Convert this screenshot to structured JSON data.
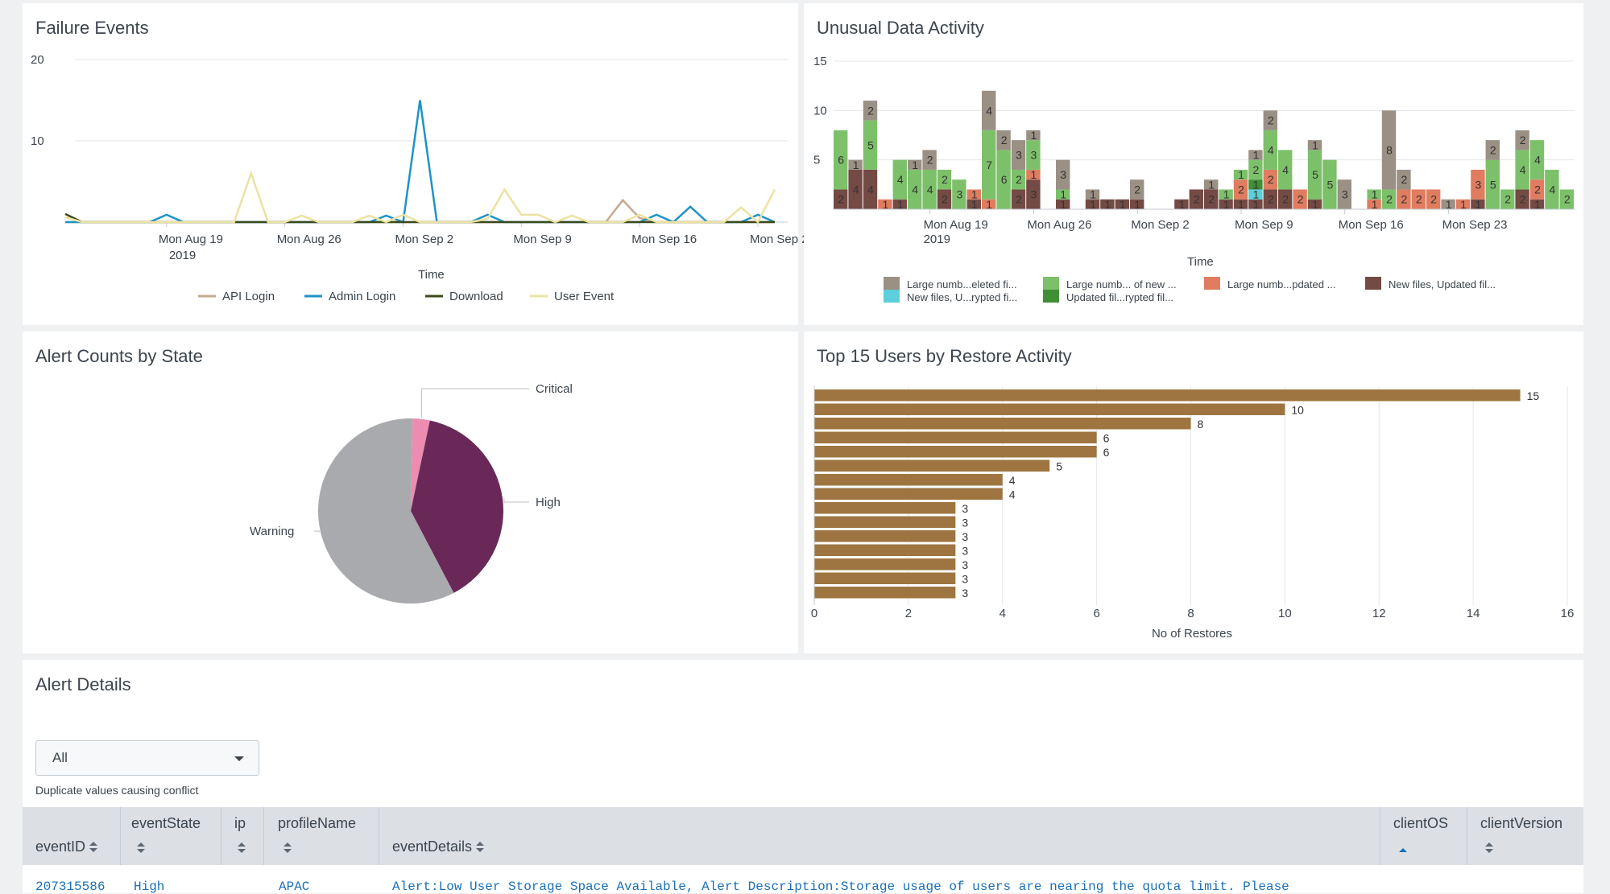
{
  "panels": {
    "failure_events": {
      "title": "Failure Events"
    },
    "unusual_data": {
      "title": "Unusual Data Activity"
    },
    "alert_counts": {
      "title": "Alert Counts by State"
    },
    "top_users": {
      "title": "Top 15 Users by Restore Activity"
    },
    "alert_details": {
      "title": "Alert Details"
    }
  },
  "chart_data": [
    {
      "id": "failure_events",
      "type": "line",
      "title": "Failure Events",
      "xlabel": "Time",
      "ylabel": "",
      "ylim": [
        0,
        20
      ],
      "yticks": [
        10,
        20
      ],
      "xtick_labels": [
        "Mon Aug 19",
        "Mon Aug 26",
        "Mon Sep 2",
        "Mon Sep 9",
        "Mon Sep 16",
        "Mon Sep 23"
      ],
      "xtick_sublabel": "2019",
      "xtick_index": [
        6,
        13,
        20,
        27,
        34,
        41
      ],
      "point_count": 43,
      "series": [
        {
          "name": "API Login",
          "color": "#c4ab8f",
          "values": [
            0,
            0,
            0,
            0,
            0,
            0,
            0,
            0,
            0,
            0,
            0,
            0,
            0,
            0,
            0,
            0,
            0,
            0,
            0,
            0,
            0,
            0,
            0,
            0,
            0,
            0,
            0,
            0,
            0,
            0,
            0,
            0,
            0,
            2.7,
            0.5,
            0,
            0,
            0,
            0,
            0,
            0,
            0,
            0
          ]
        },
        {
          "name": "Admin Login",
          "color": "#1e93c6",
          "values": [
            0,
            0,
            0,
            0,
            0,
            0,
            0.9,
            0,
            0,
            0,
            0,
            0,
            0,
            0,
            0,
            0,
            0,
            0,
            0,
            0.8,
            0,
            15,
            0,
            0,
            0,
            0.9,
            0,
            0,
            0,
            0,
            0,
            0,
            0,
            0,
            0,
            0.9,
            0,
            1.9,
            0,
            0,
            0,
            0.9,
            0
          ]
        },
        {
          "name": "Download",
          "color": "#3a4a1a",
          "values": [
            1,
            0,
            0,
            0,
            0,
            0,
            0,
            0,
            0,
            0,
            0,
            0,
            0,
            0,
            0,
            0,
            0,
            0,
            0,
            0,
            0,
            0,
            0,
            0,
            0,
            0,
            0,
            0,
            0,
            0,
            0,
            0,
            0,
            0,
            0,
            0,
            0,
            0,
            0,
            0,
            0,
            0,
            0
          ]
        },
        {
          "name": "User Event",
          "color": "#ece2a2",
          "values": [
            0.6,
            0,
            0,
            0,
            0,
            0,
            0,
            0,
            0,
            0,
            0,
            6,
            0,
            0,
            0.8,
            0,
            0,
            0,
            0.8,
            0,
            0.9,
            0,
            0,
            0,
            0,
            0.4,
            4,
            0.9,
            0.9,
            0,
            0.8,
            0,
            0,
            0,
            0.9,
            0,
            0,
            0,
            0,
            0,
            1.8,
            0,
            4
          ]
        }
      ]
    },
    {
      "id": "unusual_data",
      "type": "bar",
      "stacked": true,
      "title": "Unusual Data Activity",
      "xlabel": "Time",
      "ylim": [
        0,
        15
      ],
      "yticks": [
        5,
        10,
        15
      ],
      "xtick_labels": [
        "Mon Aug 19",
        "Mon Aug 26",
        "Mon Sep 2",
        "Mon Sep 9",
        "Mon Sep 16",
        "Mon Sep 23"
      ],
      "xtick_sublabel": "2019",
      "xtick_index": [
        6,
        13,
        20,
        27,
        34,
        41
      ],
      "series": [
        {
          "name": "Large numb...eleted fi...",
          "color": "#9a9084",
          "values": [
            0,
            1,
            2,
            0,
            0,
            1,
            2,
            0,
            0,
            0,
            4,
            2,
            3,
            1,
            0,
            3,
            0,
            1,
            0,
            0,
            2,
            0,
            0,
            0,
            0,
            1,
            0,
            0,
            1,
            2,
            0,
            0,
            1,
            0,
            3,
            0,
            0,
            8,
            2,
            0,
            0,
            1,
            0,
            0,
            2,
            0,
            2,
            0,
            0,
            0
          ]
        },
        {
          "name": "Large numb... of new ...",
          "color": "#7dc06a",
          "values": [
            6,
            0,
            5,
            0,
            4,
            4,
            4,
            2,
            3,
            0,
            7,
            6,
            2,
            3,
            0,
            1,
            0,
            0,
            0,
            0,
            0,
            0,
            0,
            0,
            0,
            0,
            1,
            1,
            2,
            4,
            4,
            0,
            5,
            5,
            0,
            0,
            1,
            2,
            0,
            0,
            0,
            0,
            0,
            0,
            5,
            2,
            4,
            4,
            4,
            2
          ]
        },
        {
          "name": "Large numb...pdated ...",
          "color": "#e07c5f",
          "values": [
            0,
            0,
            0,
            1,
            0,
            0,
            0,
            0,
            0,
            1,
            1,
            0,
            0,
            1,
            0,
            0,
            0,
            0,
            0,
            0,
            0,
            0,
            0,
            0,
            0,
            0,
            0,
            2,
            0,
            2,
            0,
            2,
            0,
            0,
            0,
            0,
            1,
            0,
            2,
            2,
            2,
            0,
            1,
            3,
            0,
            0,
            0,
            2,
            0,
            0
          ]
        },
        {
          "name": "New files, Updated fil...",
          "color": "#744a44",
          "values": [
            2,
            4,
            4,
            0,
            1,
            0,
            0,
            2,
            0,
            1,
            0,
            0,
            2,
            3,
            0,
            1,
            0,
            1,
            1,
            1,
            1,
            0,
            0,
            1,
            2,
            2,
            1,
            1,
            1,
            2,
            2,
            0,
            1,
            0,
            0,
            0,
            0,
            0,
            0,
            0,
            0,
            0,
            0,
            1,
            0,
            0,
            2,
            1,
            0,
            0
          ]
        },
        {
          "name": "New files, U...rypted fi...",
          "color": "#5bd0db",
          "values": [
            0,
            0,
            0,
            0,
            0,
            0,
            0,
            0,
            0,
            0,
            0,
            0,
            0,
            0,
            0,
            0,
            0,
            0,
            0,
            0,
            0,
            0,
            0,
            0,
            0,
            0,
            0,
            0,
            1,
            0,
            0,
            0,
            0,
            0,
            0,
            0,
            0,
            0,
            0,
            0,
            0,
            0,
            0,
            0,
            0,
            0,
            0,
            0,
            0,
            0
          ]
        },
        {
          "name": "Updated fil...rypted fil...",
          "color": "#3f8f34",
          "values": [
            0,
            0,
            0,
            0,
            0,
            0,
            0,
            0,
            0,
            0,
            0,
            0,
            0,
            0,
            0,
            0,
            0,
            0,
            0,
            0,
            0,
            0,
            0,
            0,
            0,
            0,
            0,
            0,
            1,
            0,
            0,
            0,
            0,
            0,
            0,
            0,
            0,
            0,
            0,
            0,
            0,
            0,
            0,
            0,
            0,
            0,
            0,
            0,
            0,
            0
          ]
        }
      ]
    },
    {
      "id": "alert_counts",
      "type": "pie",
      "title": "Alert Counts by State",
      "slices": [
        {
          "label": "Critical",
          "value": 3,
          "color": "#ec8cb0"
        },
        {
          "label": "High",
          "value": 39,
          "color": "#6a2858"
        },
        {
          "label": "Warning",
          "value": 58,
          "color": "#a9aaad"
        }
      ]
    },
    {
      "id": "top_users",
      "type": "bar",
      "orientation": "horizontal",
      "title": "Top 15 Users by Restore Activity",
      "xlabel": "No of Restores",
      "xlim": [
        0,
        16
      ],
      "xticks": [
        0,
        2,
        4,
        6,
        8,
        10,
        12,
        14,
        16
      ],
      "color": "#9e7540",
      "values": [
        15,
        10,
        8,
        6,
        6,
        5,
        4,
        4,
        3,
        3,
        3,
        3,
        3,
        3,
        3
      ]
    }
  ],
  "alert_details": {
    "dropdown_value": "All",
    "dropdown_help": "Duplicate values causing conflict",
    "columns": {
      "eventID": "eventID",
      "eventState": "eventState",
      "ip": "ip",
      "profileName": "profileName",
      "eventDetails": "eventDetails",
      "clientOS": "clientOS",
      "clientVersion": "clientVersion"
    },
    "rows": [
      {
        "eventID": "207315586",
        "eventState": "High",
        "ip": "",
        "profileName": "APAC",
        "eventDetails": "Alert:Low User Storage Space Available, Alert Description:Storage usage of users are nearing the quota limit. Please",
        "clientOS": "",
        "clientVersion": ""
      }
    ]
  }
}
